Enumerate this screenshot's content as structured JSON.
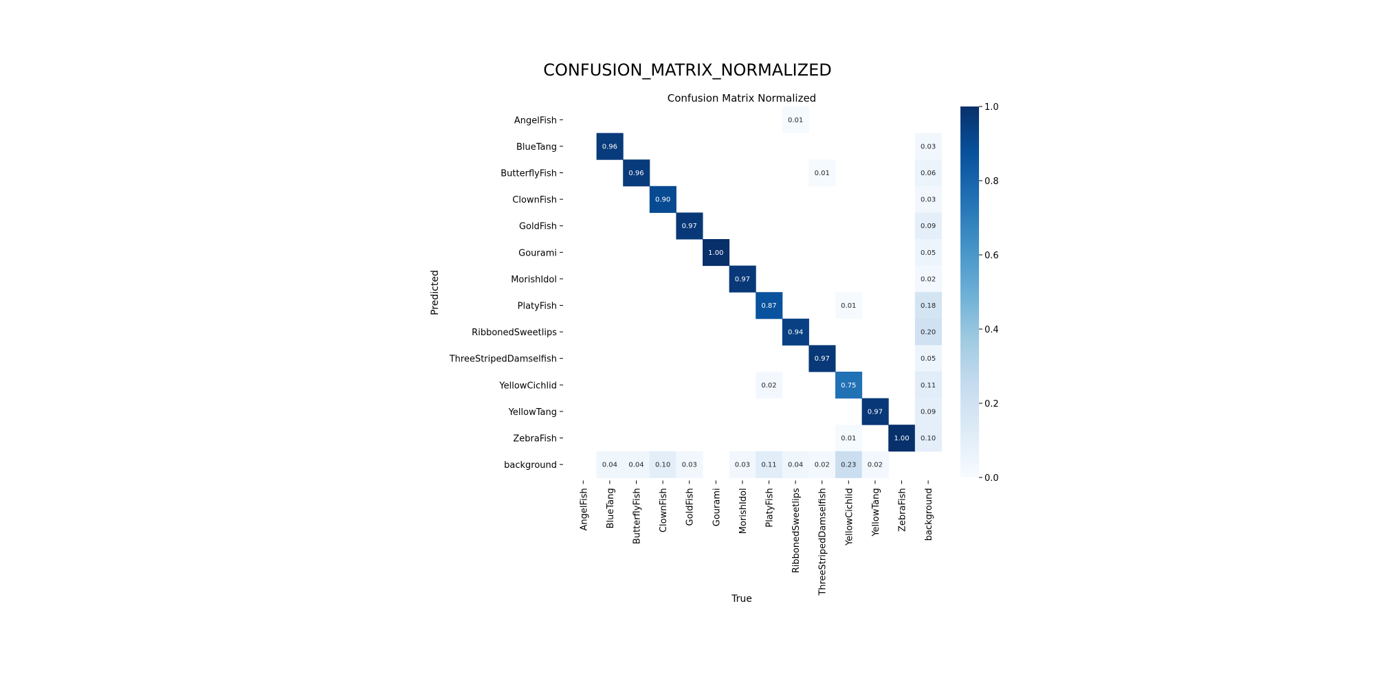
{
  "page": {
    "title": "CONFUSION_MATRIX_NORMALIZED"
  },
  "chart_data": {
    "type": "heatmap",
    "title": "Confusion Matrix Normalized",
    "xlabel": "True",
    "ylabel": "Predicted",
    "x_categories": [
      "AngelFish",
      "BlueTang",
      "ButterflyFish",
      "ClownFish",
      "GoldFish",
      "Gourami",
      "MorishIdol",
      "PlatyFish",
      "RibbonedSweetlips",
      "ThreeStripedDamselfish",
      "YellowCichlid",
      "YellowTang",
      "ZebraFish",
      "background"
    ],
    "y_categories": [
      "AngelFish",
      "BlueTang",
      "ButterflyFish",
      "ClownFish",
      "GoldFish",
      "Gourami",
      "MorishIdol",
      "PlatyFish",
      "RibbonedSweetlips",
      "ThreeStripedDamselfish",
      "YellowCichlid",
      "YellowTang",
      "ZebraFish",
      "background"
    ],
    "values": [
      [
        null,
        null,
        null,
        null,
        null,
        null,
        null,
        null,
        0.01,
        null,
        null,
        null,
        null,
        null
      ],
      [
        null,
        0.96,
        null,
        null,
        null,
        null,
        null,
        null,
        null,
        null,
        null,
        null,
        null,
        0.03
      ],
      [
        null,
        null,
        0.96,
        null,
        null,
        null,
        null,
        null,
        null,
        0.01,
        null,
        null,
        null,
        0.06
      ],
      [
        null,
        null,
        null,
        0.9,
        null,
        null,
        null,
        null,
        null,
        null,
        null,
        null,
        null,
        0.03
      ],
      [
        null,
        null,
        null,
        null,
        0.97,
        null,
        null,
        null,
        null,
        null,
        null,
        null,
        null,
        0.09
      ],
      [
        null,
        null,
        null,
        null,
        null,
        1.0,
        null,
        null,
        null,
        null,
        null,
        null,
        null,
        0.05
      ],
      [
        null,
        null,
        null,
        null,
        null,
        null,
        0.97,
        null,
        null,
        null,
        null,
        null,
        null,
        0.02
      ],
      [
        null,
        null,
        null,
        null,
        null,
        null,
        null,
        0.87,
        null,
        null,
        0.01,
        null,
        null,
        0.18
      ],
      [
        null,
        null,
        null,
        null,
        null,
        null,
        null,
        null,
        0.94,
        null,
        null,
        null,
        null,
        0.2
      ],
      [
        null,
        null,
        null,
        null,
        null,
        null,
        null,
        null,
        null,
        0.97,
        null,
        null,
        null,
        0.05
      ],
      [
        null,
        null,
        null,
        null,
        null,
        null,
        null,
        0.02,
        null,
        null,
        0.75,
        null,
        null,
        0.11
      ],
      [
        null,
        null,
        null,
        null,
        null,
        null,
        null,
        null,
        null,
        null,
        null,
        0.97,
        null,
        0.09
      ],
      [
        null,
        null,
        null,
        null,
        null,
        null,
        null,
        null,
        null,
        null,
        0.01,
        null,
        1.0,
        0.1
      ],
      [
        null,
        0.04,
        0.04,
        0.1,
        0.03,
        null,
        0.03,
        0.11,
        0.04,
        0.02,
        0.23,
        0.02,
        null,
        null
      ]
    ],
    "colorbar": {
      "range": [
        0.0,
        1.0
      ],
      "ticks": [
        "0.0",
        "0.2",
        "0.4",
        "0.6",
        "0.8",
        "1.0"
      ],
      "colormap": "Blues"
    },
    "grid": false
  }
}
